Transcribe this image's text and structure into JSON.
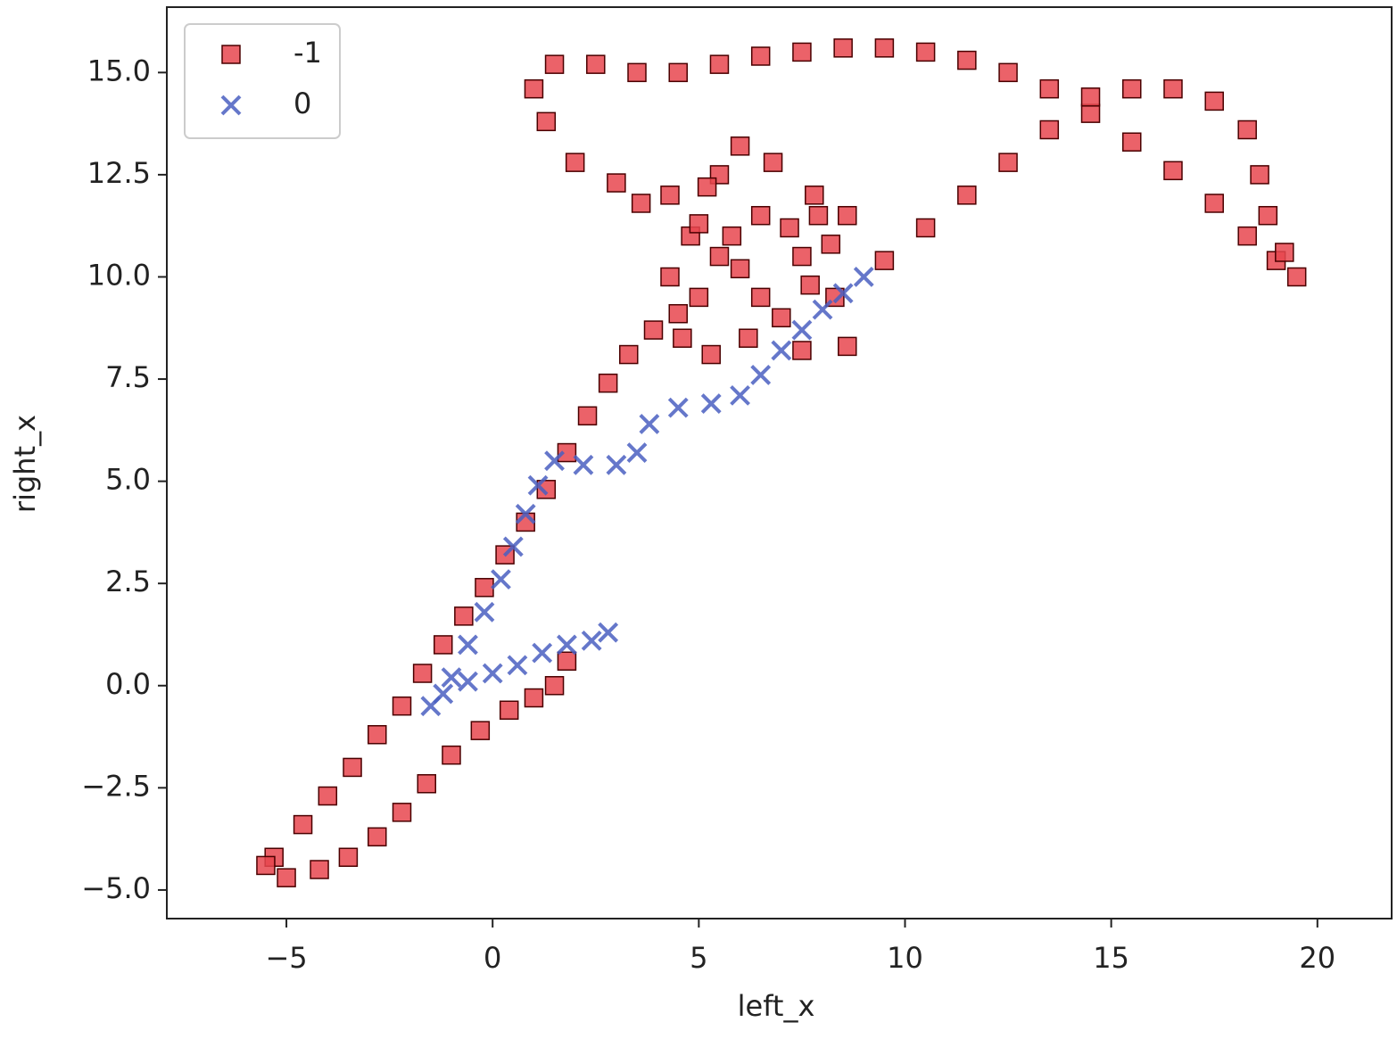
{
  "chart_data": {
    "type": "scatter",
    "x_label": "left_x",
    "y_label": "right_x",
    "xlim": [
      -7.9,
      21.8
    ],
    "ylim": [
      -5.7,
      16.6
    ],
    "xticks": [
      {
        "value": -5,
        "label": "−5"
      },
      0,
      5,
      10,
      15,
      20
    ],
    "yticks": [
      {
        "value": -5,
        "label": "−5.0"
      },
      {
        "value": -2.5,
        "label": "−2.5"
      },
      {
        "value": 0,
        "label": "0.0"
      },
      2.5,
      {
        "value": 5,
        "label": "5.0"
      },
      7.5,
      {
        "value": 10,
        "label": "10.0"
      },
      12.5,
      {
        "value": 15,
        "label": "15.0"
      }
    ],
    "legend": "upper left",
    "series": [
      {
        "name": "-1",
        "color": "#e8474f",
        "edge_color": "#4a0000",
        "marker": "square",
        "x": [
          -5.3,
          -4.6,
          -4,
          -3.4,
          -2.8,
          -2.2,
          -1.7,
          -1.2,
          -0.7,
          -0.2,
          0.3,
          0.8,
          1.3,
          1.8,
          2.3,
          2.8,
          3.3,
          3.9,
          4.5,
          5,
          5.5,
          4.8,
          4.3,
          4.6,
          5.3,
          6.2,
          7,
          7.7,
          8.2,
          8.6,
          7.8,
          6.8,
          6,
          5.5,
          6.5,
          7.5,
          8.3,
          8.6,
          7.5,
          6.5,
          5.8,
          5.2,
          4.3,
          3.6,
          5,
          6,
          7.2,
          7.9,
          3,
          2,
          1.3,
          1,
          1.5,
          2.5,
          3.5,
          4.5,
          5.5,
          6.5,
          7.5,
          8.5,
          9.5,
          10.5,
          11.5,
          12.5,
          13.5,
          14.5,
          15.5,
          16.5,
          17.5,
          18.3,
          19,
          19.5,
          19.2,
          18.8,
          18.6,
          18.3,
          17.5,
          16.5,
          15.5,
          14.5,
          13.5,
          12.5,
          11.5,
          10.5,
          9.5,
          1.8,
          1.5,
          1,
          0.4,
          -0.3,
          -1,
          -1.6,
          -2.2,
          -2.8,
          -3.5,
          -4.2,
          -5,
          -5.5
        ],
        "y": [
          -4.2,
          -3.4,
          -2.7,
          -2,
          -1.2,
          -0.5,
          0.3,
          1,
          1.7,
          2.4,
          3.2,
          4,
          4.8,
          5.7,
          6.6,
          7.4,
          8.1,
          8.7,
          9.1,
          9.5,
          10.5,
          11,
          10,
          8.5,
          8.1,
          8.5,
          9,
          9.8,
          10.8,
          11.5,
          12,
          12.8,
          13.2,
          12.5,
          11.5,
          10.5,
          9.5,
          8.3,
          8.2,
          9.5,
          11,
          12.2,
          12,
          11.8,
          11.3,
          10.2,
          11.2,
          11.5,
          12.3,
          12.8,
          13.8,
          14.6,
          15.2,
          15.2,
          15,
          15,
          15.2,
          15.4,
          15.5,
          15.6,
          15.6,
          15.5,
          15.3,
          15,
          14.6,
          14,
          13.3,
          12.6,
          11.8,
          11,
          10.4,
          10,
          10.6,
          11.5,
          12.5,
          13.6,
          14.3,
          14.6,
          14.6,
          14.4,
          13.6,
          12.8,
          12,
          11.2,
          10.4,
          0.6,
          0,
          -0.3,
          -0.6,
          -1.1,
          -1.7,
          -2.4,
          -3.1,
          -3.7,
          -4.2,
          -4.5,
          -4.7,
          -4.4
        ]
      },
      {
        "name": "0",
        "color": "#4a5fc1",
        "marker": "x",
        "x": [
          2.8,
          2.4,
          1.8,
          1.2,
          0.6,
          0,
          -0.6,
          -1.2,
          -1.5,
          -1,
          -0.6,
          -0.2,
          0.2,
          0.5,
          0.8,
          1.1,
          1.5,
          2.2,
          3,
          3.5,
          3.8,
          4.5,
          5.3,
          6,
          6.5,
          7,
          7.5,
          8,
          8.5,
          9
        ],
        "y": [
          1.3,
          1.1,
          1,
          0.8,
          0.5,
          0.3,
          0.1,
          -0.2,
          -0.5,
          0.2,
          1,
          1.8,
          2.6,
          3.4,
          4.2,
          4.9,
          5.5,
          5.4,
          5.4,
          5.7,
          6.4,
          6.8,
          6.9,
          7.1,
          7.6,
          8.2,
          8.7,
          9.2,
          9.6,
          10
        ]
      }
    ]
  }
}
